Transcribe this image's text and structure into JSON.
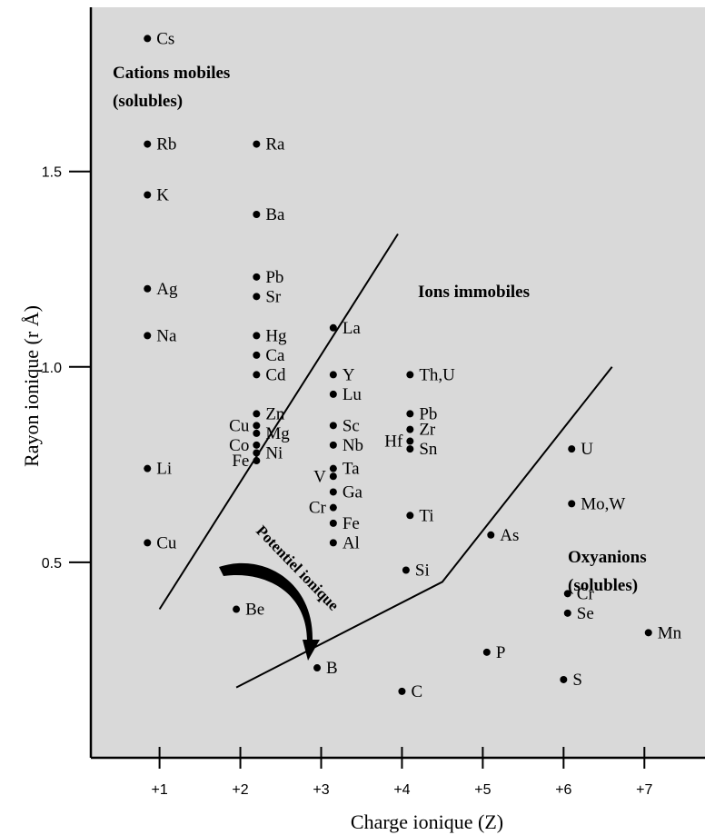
{
  "chart_data": {
    "type": "scatter",
    "xlabel": "Charge ionique (Z)",
    "ylabel": "Rayon ionique (r Å)",
    "xticks": [
      "+1",
      "+2",
      "+3",
      "+4",
      "+5",
      "+6",
      "+7"
    ],
    "yticks": [
      "0.5",
      "1.0",
      "1.5"
    ],
    "xlim": [
      0.15,
      7.75
    ],
    "ylim": [
      0.0,
      1.92
    ],
    "grid": false,
    "regions": [
      {
        "key": "mobiles",
        "lines": [
          "Cations mobiles",
          "(solubles)"
        ]
      },
      {
        "key": "immobiles",
        "lines": [
          "Ions immobiles"
        ]
      },
      {
        "key": "oxyanions",
        "lines": [
          "Oxyanions",
          "(solubles)"
        ]
      }
    ],
    "arrow_label": "Potentiel ionique",
    "boundaries": [
      [
        [
          1.0,
          0.38
        ],
        [
          3.95,
          1.34
        ]
      ],
      [
        [
          1.95,
          0.18
        ],
        [
          4.5,
          0.45
        ],
        [
          6.6,
          1.0
        ]
      ]
    ],
    "points": [
      {
        "label": "Cs",
        "x": 0.85,
        "y": 1.84,
        "side": "right"
      },
      {
        "label": "Rb",
        "x": 0.85,
        "y": 1.57,
        "side": "right"
      },
      {
        "label": "K",
        "x": 0.85,
        "y": 1.44,
        "side": "right"
      },
      {
        "label": "Ag",
        "x": 0.85,
        "y": 1.2,
        "side": "right"
      },
      {
        "label": "Na",
        "x": 0.85,
        "y": 1.08,
        "side": "right"
      },
      {
        "label": "Li",
        "x": 0.85,
        "y": 0.74,
        "side": "right"
      },
      {
        "label": "Cu",
        "x": 0.85,
        "y": 0.55,
        "side": "right"
      },
      {
        "label": "Ra",
        "x": 2.2,
        "y": 1.57,
        "side": "right"
      },
      {
        "label": "Ba",
        "x": 2.2,
        "y": 1.39,
        "side": "right"
      },
      {
        "label": "Pb",
        "x": 2.2,
        "y": 1.23,
        "side": "right"
      },
      {
        "label": "Sr",
        "x": 2.2,
        "y": 1.18,
        "side": "right"
      },
      {
        "label": "Hg",
        "x": 2.2,
        "y": 1.08,
        "side": "right"
      },
      {
        "label": "Ca",
        "x": 2.2,
        "y": 1.03,
        "side": "right"
      },
      {
        "label": "Cd",
        "x": 2.2,
        "y": 0.98,
        "side": "right"
      },
      {
        "label": "Zn",
        "x": 2.2,
        "y": 0.88,
        "side": "right"
      },
      {
        "label": "Cu",
        "x": 2.2,
        "y": 0.85,
        "side": "left"
      },
      {
        "label": "Mg",
        "x": 2.2,
        "y": 0.83,
        "side": "right"
      },
      {
        "label": "Co",
        "x": 2.2,
        "y": 0.8,
        "side": "left"
      },
      {
        "label": "Ni",
        "x": 2.2,
        "y": 0.78,
        "side": "right"
      },
      {
        "label": "Fe",
        "x": 2.2,
        "y": 0.76,
        "side": "left"
      },
      {
        "label": "Be",
        "x": 1.95,
        "y": 0.38,
        "side": "right"
      },
      {
        "label": "La",
        "x": 3.15,
        "y": 1.1,
        "side": "right"
      },
      {
        "label": "Y",
        "x": 3.15,
        "y": 0.98,
        "side": "right"
      },
      {
        "label": "Lu",
        "x": 3.15,
        "y": 0.93,
        "side": "right"
      },
      {
        "label": "Sc",
        "x": 3.15,
        "y": 0.85,
        "side": "right"
      },
      {
        "label": "Nb",
        "x": 3.15,
        "y": 0.8,
        "side": "right"
      },
      {
        "label": "Ta",
        "x": 3.15,
        "y": 0.74,
        "side": "right"
      },
      {
        "label": "V",
        "x": 3.15,
        "y": 0.72,
        "side": "left"
      },
      {
        "label": "Ga",
        "x": 3.15,
        "y": 0.68,
        "side": "right"
      },
      {
        "label": "Cr",
        "x": 3.15,
        "y": 0.64,
        "side": "left"
      },
      {
        "label": "Fe",
        "x": 3.15,
        "y": 0.6,
        "side": "right"
      },
      {
        "label": "Al",
        "x": 3.15,
        "y": 0.55,
        "side": "right"
      },
      {
        "label": "B",
        "x": 2.95,
        "y": 0.23,
        "side": "right"
      },
      {
        "label": "Th,U",
        "x": 4.1,
        "y": 0.98,
        "side": "right"
      },
      {
        "label": "Pb",
        "x": 4.1,
        "y": 0.88,
        "side": "right"
      },
      {
        "label": "Zr",
        "x": 4.1,
        "y": 0.84,
        "side": "right"
      },
      {
        "label": "Hf",
        "x": 4.1,
        "y": 0.81,
        "side": "left"
      },
      {
        "label": "Sn",
        "x": 4.1,
        "y": 0.79,
        "side": "right"
      },
      {
        "label": "Ti",
        "x": 4.1,
        "y": 0.62,
        "side": "right"
      },
      {
        "label": "Si",
        "x": 4.05,
        "y": 0.48,
        "side": "right"
      },
      {
        "label": "C",
        "x": 4.0,
        "y": 0.17,
        "side": "right"
      },
      {
        "label": "As",
        "x": 5.1,
        "y": 0.57,
        "side": "right"
      },
      {
        "label": "P",
        "x": 5.05,
        "y": 0.27,
        "side": "right"
      },
      {
        "label": "U",
        "x": 6.1,
        "y": 0.79,
        "side": "right"
      },
      {
        "label": "Mo,W",
        "x": 6.1,
        "y": 0.65,
        "side": "right"
      },
      {
        "label": "Cr",
        "x": 6.05,
        "y": 0.42,
        "side": "right"
      },
      {
        "label": "Se",
        "x": 6.05,
        "y": 0.37,
        "side": "right"
      },
      {
        "label": "S",
        "x": 6.0,
        "y": 0.2,
        "side": "right"
      },
      {
        "label": "Mn",
        "x": 7.05,
        "y": 0.32,
        "side": "right"
      }
    ]
  },
  "colors": {
    "plot_background": "#d9d9d9",
    "ink": "#000000"
  }
}
